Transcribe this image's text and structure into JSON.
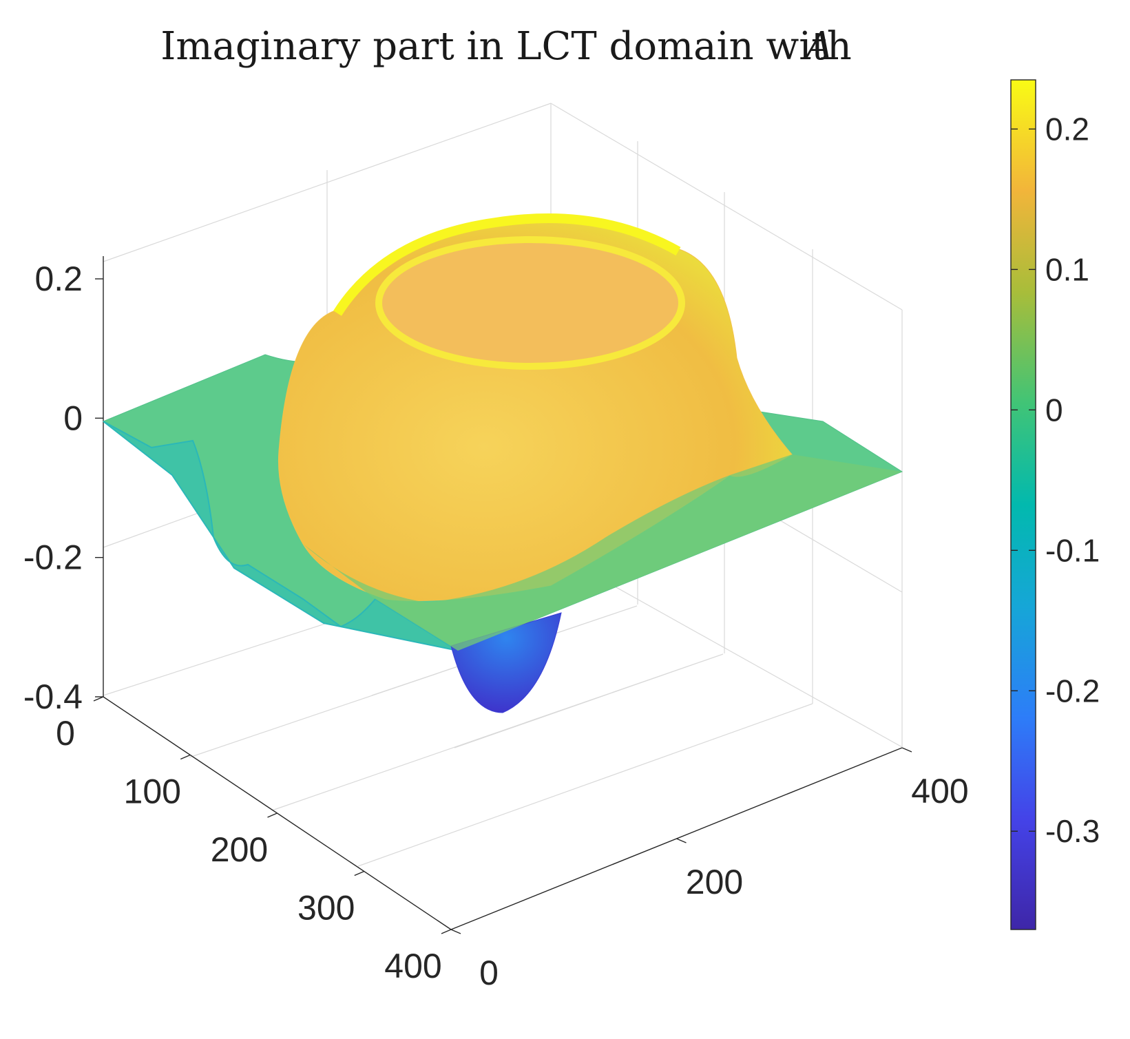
{
  "chart_data": {
    "type": "surface",
    "title": "Imaginary part in LCT domain with",
    "title_symbol": "A",
    "x_axis": {
      "range": [
        0,
        400
      ],
      "ticks": [
        "0",
        "200",
        "400"
      ]
    },
    "y_axis": {
      "range": [
        0,
        400
      ],
      "ticks": [
        "0",
        "100",
        "200",
        "300",
        "400"
      ]
    },
    "z_axis": {
      "range": [
        -0.4,
        0.25
      ],
      "ticks": [
        "0.2",
        "0",
        "-0.2",
        "-0.4"
      ]
    },
    "colorbar": {
      "range": [
        -0.37,
        0.235
      ],
      "ticks": [
        "0.2",
        "0.1",
        "0",
        "-0.1",
        "-0.2",
        "-0.3"
      ],
      "colormap": "parula"
    },
    "surface": {
      "grid_size": [
        400,
        400
      ],
      "features": [
        {
          "label": "ring-shaped positive plateau",
          "center": [
            200,
            200
          ],
          "peak_value": 0.23,
          "crater_value": 0.15
        },
        {
          "label": "negative trough",
          "location": [
            260,
            330
          ],
          "min_value": -0.37
        },
        {
          "label": "flat background",
          "value": 0.0
        }
      ]
    },
    "grid": true
  }
}
